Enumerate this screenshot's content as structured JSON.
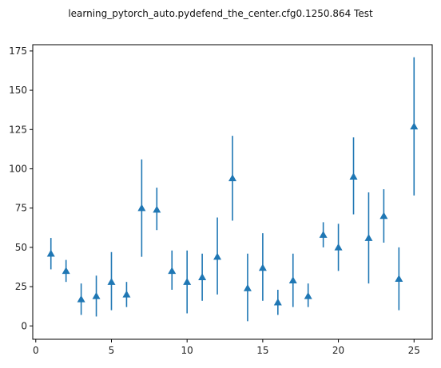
{
  "chart_data": {
    "type": "scatter",
    "style": "errorbar",
    "marker": "triangle-up",
    "title": "learning_pytorch_auto.pydefend_the_center.cfg0.1250.864 Test",
    "xlabel": "",
    "ylabel": "",
    "xlim": [
      -0.2,
      26.2
    ],
    "ylim": [
      -8.5,
      179
    ],
    "grid": false,
    "legend": "none",
    "series_color": "#1f77b4",
    "x_ticks": [
      0,
      5,
      10,
      15,
      20,
      25
    ],
    "y_ticks": [
      0,
      25,
      50,
      75,
      100,
      125,
      150,
      175
    ],
    "x": [
      1,
      2,
      3,
      4,
      5,
      6,
      7,
      8,
      9,
      10,
      11,
      12,
      13,
      14,
      15,
      16,
      17,
      18,
      19,
      20,
      21,
      22,
      23,
      24,
      25
    ],
    "y": [
      46,
      35,
      17,
      19,
      28,
      20,
      75,
      74,
      35,
      28,
      31,
      44,
      94,
      24,
      37,
      15,
      29,
      19,
      58,
      50,
      95,
      56,
      70,
      30,
      127
    ],
    "yerr_low": [
      36,
      28,
      7,
      6,
      10,
      12,
      44,
      61,
      23,
      8,
      16,
      20,
      67,
      3,
      16,
      7,
      12,
      12,
      50,
      35,
      71,
      27,
      53,
      10,
      83
    ],
    "yerr_high": [
      56,
      42,
      27,
      32,
      47,
      28,
      106,
      88,
      48,
      48,
      46,
      69,
      121,
      46,
      59,
      23,
      46,
      27,
      66,
      65,
      120,
      85,
      87,
      50,
      171
    ]
  }
}
